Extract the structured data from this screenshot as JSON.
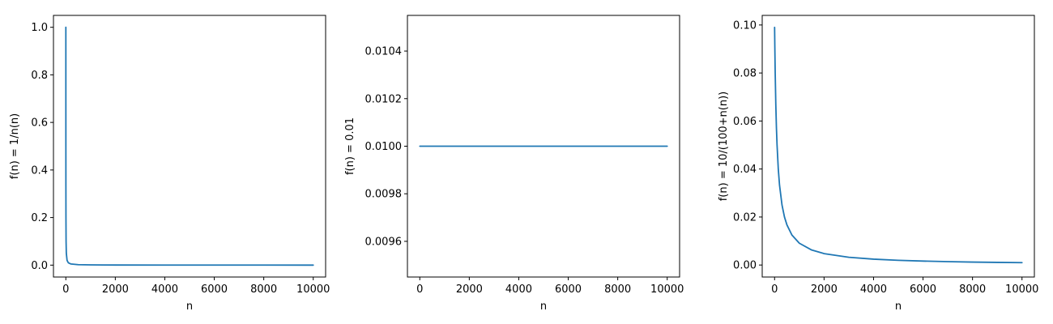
{
  "chart_data": [
    {
      "type": "line",
      "xlabel": "n",
      "ylabel": "f(n) = 1/n(n)",
      "xlim": [
        -500,
        10500
      ],
      "ylim": [
        -0.05,
        1.05
      ],
      "xticks": [
        0,
        2000,
        4000,
        6000,
        8000,
        10000
      ],
      "xtick_labels": [
        "0",
        "2000",
        "4000",
        "6000",
        "8000",
        "10000"
      ],
      "yticks": [
        0.0,
        0.2,
        0.4,
        0.6,
        0.8,
        1.0
      ],
      "ytick_labels": [
        "0.0",
        "0.2",
        "0.4",
        "0.6",
        "0.8",
        "1.0"
      ],
      "grid": false,
      "series": [
        {
          "color": "#1f77b4",
          "x": [
            1,
            2,
            3,
            5,
            10,
            20,
            50,
            100,
            200,
            500,
            1000,
            2000,
            4000,
            6000,
            8000,
            10000
          ],
          "y": [
            1.0,
            0.5,
            0.333,
            0.2,
            0.1,
            0.05,
            0.02,
            0.01,
            0.005,
            0.002,
            0.001,
            0.0005,
            0.00025,
            0.000167,
            0.000125,
            0.0001
          ]
        }
      ]
    },
    {
      "type": "line",
      "xlabel": "n",
      "ylabel": "f(n) = 0.01",
      "xlim": [
        -500,
        10500
      ],
      "ylim": [
        0.00945,
        0.01055
      ],
      "xticks": [
        0,
        2000,
        4000,
        6000,
        8000,
        10000
      ],
      "xtick_labels": [
        "0",
        "2000",
        "4000",
        "6000",
        "8000",
        "10000"
      ],
      "yticks": [
        0.0096,
        0.0098,
        0.01,
        0.0102,
        0.0104
      ],
      "ytick_labels": [
        "0.0096",
        "0.0098",
        "0.0100",
        "0.0102",
        "0.0104"
      ],
      "grid": false,
      "series": [
        {
          "color": "#1f77b4",
          "x": [
            1,
            10000
          ],
          "y": [
            0.01,
            0.01
          ]
        }
      ]
    },
    {
      "type": "line",
      "xlabel": "n",
      "ylabel": "f(n) = 10/(100+n(n))",
      "xlim": [
        -500,
        10500
      ],
      "ylim": [
        -0.005,
        0.104
      ],
      "xticks": [
        0,
        2000,
        4000,
        6000,
        8000,
        10000
      ],
      "xtick_labels": [
        "0",
        "2000",
        "4000",
        "6000",
        "8000",
        "10000"
      ],
      "yticks": [
        0.0,
        0.02,
        0.04,
        0.06,
        0.08,
        0.1
      ],
      "ytick_labels": [
        "0.00",
        "0.02",
        "0.04",
        "0.06",
        "0.08",
        "0.10"
      ],
      "grid": false,
      "series": [
        {
          "color": "#1f77b4",
          "x": [
            1,
            10,
            25,
            50,
            75,
            100,
            150,
            200,
            300,
            400,
            500,
            700,
            1000,
            1500,
            2000,
            3000,
            4000,
            5000,
            6000,
            7000,
            8000,
            9000,
            10000
          ],
          "y": [
            0.099,
            0.0909,
            0.08,
            0.0667,
            0.0571,
            0.05,
            0.04,
            0.0333,
            0.025,
            0.02,
            0.0167,
            0.0125,
            0.00909,
            0.00625,
            0.00476,
            0.00323,
            0.00244,
            0.00196,
            0.00164,
            0.00141,
            0.00123,
            0.0011,
            0.00099
          ]
        }
      ]
    }
  ]
}
